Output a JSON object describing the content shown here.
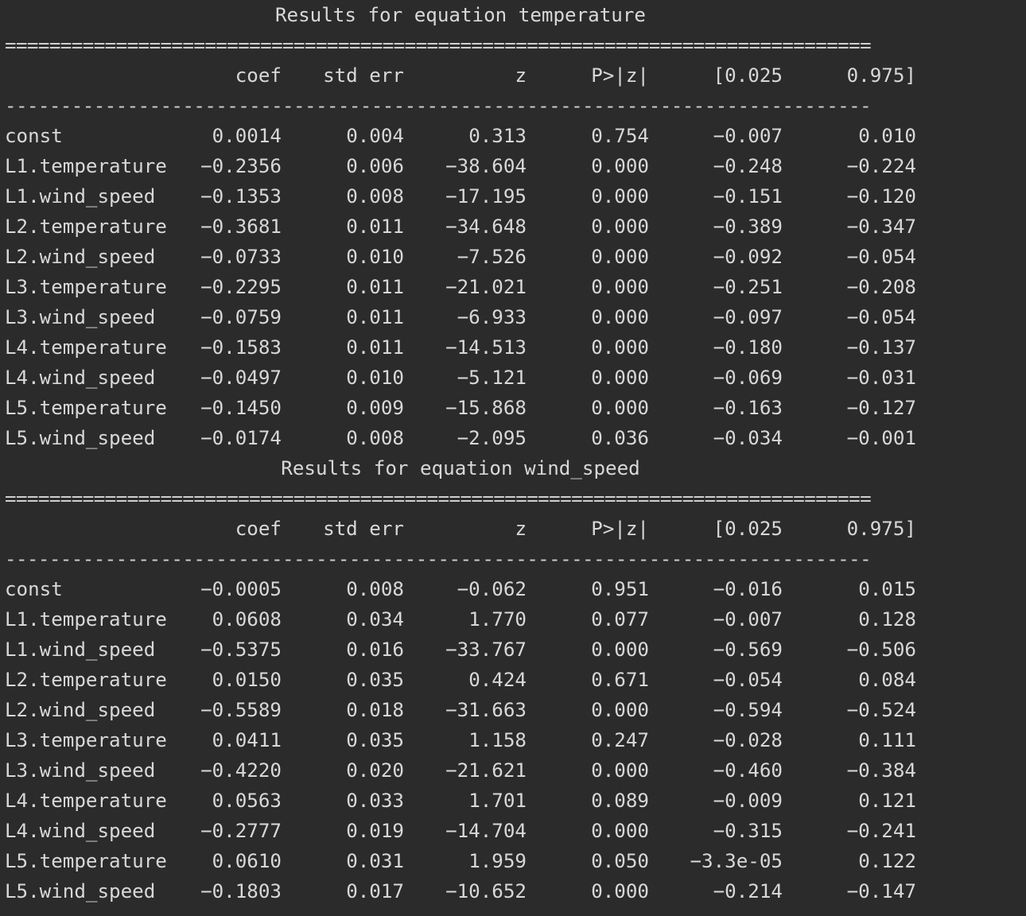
{
  "columns": [
    "coef",
    "std err",
    "z",
    "P>|z|",
    "[0.025",
    "0.975]"
  ],
  "double_rule": "==============================================================================",
  "single_rule": "------------------------------------------------------------------------------",
  "sections": [
    {
      "title": "Results for equation temperature",
      "rows": [
        [
          "const",
          "0.0014",
          "0.004",
          "0.313",
          "0.754",
          "-0.007",
          "0.010"
        ],
        [
          "L1.temperature",
          "-0.2356",
          "0.006",
          "-38.604",
          "0.000",
          "-0.248",
          "-0.224"
        ],
        [
          "L1.wind_speed",
          "-0.1353",
          "0.008",
          "-17.195",
          "0.000",
          "-0.151",
          "-0.120"
        ],
        [
          "L2.temperature",
          "-0.3681",
          "0.011",
          "-34.648",
          "0.000",
          "-0.389",
          "-0.347"
        ],
        [
          "L2.wind_speed",
          "-0.0733",
          "0.010",
          "-7.526",
          "0.000",
          "-0.092",
          "-0.054"
        ],
        [
          "L3.temperature",
          "-0.2295",
          "0.011",
          "-21.021",
          "0.000",
          "-0.251",
          "-0.208"
        ],
        [
          "L3.wind_speed",
          "-0.0759",
          "0.011",
          "-6.933",
          "0.000",
          "-0.097",
          "-0.054"
        ],
        [
          "L4.temperature",
          "-0.1583",
          "0.011",
          "-14.513",
          "0.000",
          "-0.180",
          "-0.137"
        ],
        [
          "L4.wind_speed",
          "-0.0497",
          "0.010",
          "-5.121",
          "0.000",
          "-0.069",
          "-0.031"
        ],
        [
          "L5.temperature",
          "-0.1450",
          "0.009",
          "-15.868",
          "0.000",
          "-0.163",
          "-0.127"
        ],
        [
          "L5.wind_speed",
          "-0.0174",
          "0.008",
          "-2.095",
          "0.036",
          "-0.034",
          "-0.001"
        ]
      ]
    },
    {
      "title": "Results for equation wind_speed",
      "rows": [
        [
          "const",
          "-0.0005",
          "0.008",
          "-0.062",
          "0.951",
          "-0.016",
          "0.015"
        ],
        [
          "L1.temperature",
          "0.0608",
          "0.034",
          "1.770",
          "0.077",
          "-0.007",
          "0.128"
        ],
        [
          "L1.wind_speed",
          "-0.5375",
          "0.016",
          "-33.767",
          "0.000",
          "-0.569",
          "-0.506"
        ],
        [
          "L2.temperature",
          "0.0150",
          "0.035",
          "0.424",
          "0.671",
          "-0.054",
          "0.084"
        ],
        [
          "L2.wind_speed",
          "-0.5589",
          "0.018",
          "-31.663",
          "0.000",
          "-0.594",
          "-0.524"
        ],
        [
          "L3.temperature",
          "0.0411",
          "0.035",
          "1.158",
          "0.247",
          "-0.028",
          "0.111"
        ],
        [
          "L3.wind_speed",
          "-0.4220",
          "0.020",
          "-21.621",
          "0.000",
          "-0.460",
          "-0.384"
        ],
        [
          "L4.temperature",
          "0.0563",
          "0.033",
          "1.701",
          "0.089",
          "-0.009",
          "0.121"
        ],
        [
          "L4.wind_speed",
          "-0.2777",
          "0.019",
          "-14.704",
          "0.000",
          "-0.315",
          "-0.241"
        ],
        [
          "L5.temperature",
          "0.0610",
          "0.031",
          "1.959",
          "0.050",
          "-3.3e-05",
          "0.122"
        ],
        [
          "L5.wind_speed",
          "-0.1803",
          "0.017",
          "-10.652",
          "0.000",
          "-0.214",
          "-0.147"
        ]
      ]
    }
  ]
}
